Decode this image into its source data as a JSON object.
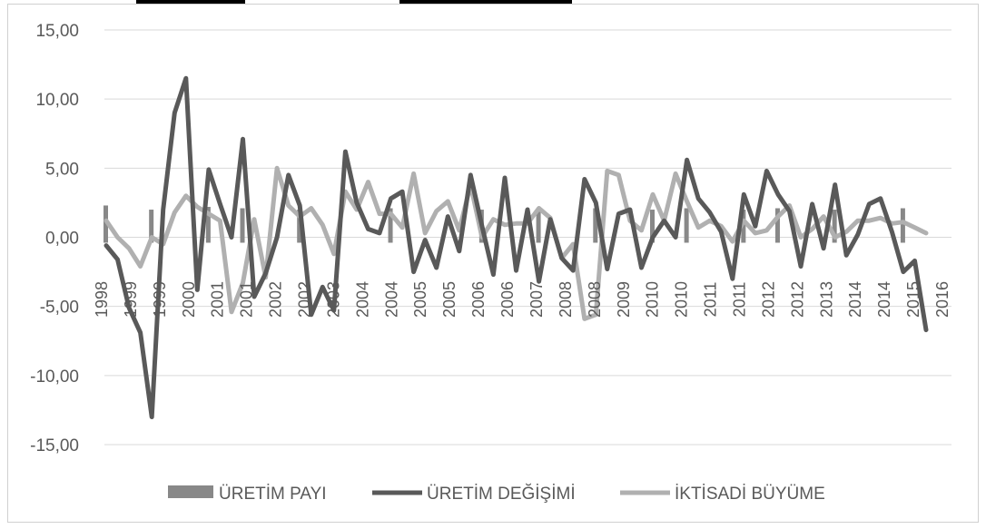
{
  "chart_data": {
    "type": "line",
    "title": "",
    "ylim": [
      -15,
      15
    ],
    "y_ticks": [
      "15,00",
      "10,00",
      "5,00",
      "0,00",
      "-5,00",
      "-10,00",
      "-15,00"
    ],
    "x_tick_labels": [
      "1998",
      "1999",
      "1999",
      "2000",
      "2001",
      "2001",
      "2002",
      "2002",
      "2003",
      "2004",
      "2004",
      "2005",
      "2005",
      "2006",
      "2006",
      "2007",
      "2008",
      "2008",
      "2009",
      "2010",
      "2010",
      "2011",
      "2011",
      "2012",
      "2012",
      "2013",
      "2014",
      "2014",
      "2015",
      "2016"
    ],
    "grid": true,
    "legend_position": "bottom",
    "series": [
      {
        "name": "ÜRETİM PAYI",
        "style": "bar",
        "color": "#888888",
        "values": [
          2.3,
          null,
          null,
          null,
          2.0,
          null,
          null,
          null,
          null,
          2.2,
          null,
          null,
          2.1,
          null,
          null,
          null,
          null,
          2.0,
          null,
          null,
          null,
          null,
          null,
          null,
          null,
          2.1,
          null,
          null,
          null,
          null,
          null,
          null,
          null,
          2.0,
          null,
          null,
          null,
          null,
          2.0,
          null,
          null,
          null,
          null,
          2.1,
          null,
          null,
          null,
          null,
          2.0,
          null,
          null,
          2.1,
          null,
          null,
          null,
          null,
          2.0,
          null,
          null,
          2.1,
          null,
          null,
          null,
          null,
          2.0,
          null,
          null,
          null,
          null,
          null,
          2.1,
          null,
          null,
          null,
          null,
          null,
          null,
          null,
          null,
          null,
          2.0,
          null,
          null,
          null,
          null,
          null,
          2.1,
          null,
          null,
          null,
          null,
          null,
          null,
          null,
          null,
          null,
          null,
          null,
          null,
          2.0,
          null,
          null,
          null,
          null,
          null,
          null,
          null,
          null,
          null,
          null
        ]
      },
      {
        "name": "ÜRETİM DEĞİŞİMİ",
        "style": "line",
        "color": "#595959",
        "values": [
          -0.6,
          -1.6,
          -5.1,
          -6.9,
          -13.0,
          2.0,
          9.0,
          11.5,
          -3.8,
          4.9,
          2.4,
          0.0,
          7.1,
          -4.3,
          -2.6,
          0.0,
          4.5,
          2.3,
          -5.6,
          -3.6,
          -5.3,
          6.2,
          2.5,
          0.6,
          0.3,
          2.8,
          3.3,
          -2.5,
          -0.2,
          -2.2,
          1.5,
          -1.0,
          4.5,
          0.8,
          -2.7,
          4.3,
          -2.4,
          2.0,
          -3.2,
          1.3,
          -1.5,
          -2.4,
          4.2,
          2.5,
          -2.3,
          1.7,
          2.0,
          -2.2,
          0.0,
          1.2,
          0.0,
          5.6,
          2.8,
          1.8,
          0.4,
          -3.0,
          3.1,
          0.8,
          4.8,
          3.1,
          1.9,
          -2.1,
          2.4,
          -0.8,
          3.8,
          -1.3,
          0.2,
          2.4,
          2.8,
          0.4,
          -2.5,
          -1.7,
          -6.7
        ]
      },
      {
        "name": "İKTİSADİ BÜYÜME",
        "style": "line",
        "color": "#b0b0b0",
        "values": [
          1.2,
          0.0,
          -0.8,
          -2.1,
          0.0,
          -0.5,
          1.8,
          3.0,
          2.2,
          1.7,
          1.2,
          -5.4,
          -3.3,
          1.3,
          -2.9,
          5.0,
          2.3,
          1.5,
          2.1,
          0.9,
          -1.2,
          3.3,
          2.0,
          4.0,
          1.7,
          1.7,
          0.7,
          4.6,
          0.3,
          1.9,
          2.6,
          0.5,
          3.8,
          0.0,
          1.3,
          0.9,
          1.0,
          1.0,
          2.1,
          1.4,
          -1.5,
          -0.5,
          -5.9,
          -5.6,
          4.8,
          4.5,
          1.2,
          0.5,
          3.1,
          1.2,
          4.6,
          2.6,
          0.7,
          1.2,
          0.8,
          -0.3,
          1.2,
          0.3,
          0.5,
          1.5,
          2.3,
          0.0,
          0.6,
          1.5,
          0.0,
          0.4,
          1.2,
          1.2,
          1.4,
          1.0,
          1.1,
          0.7,
          0.3
        ]
      }
    ]
  }
}
